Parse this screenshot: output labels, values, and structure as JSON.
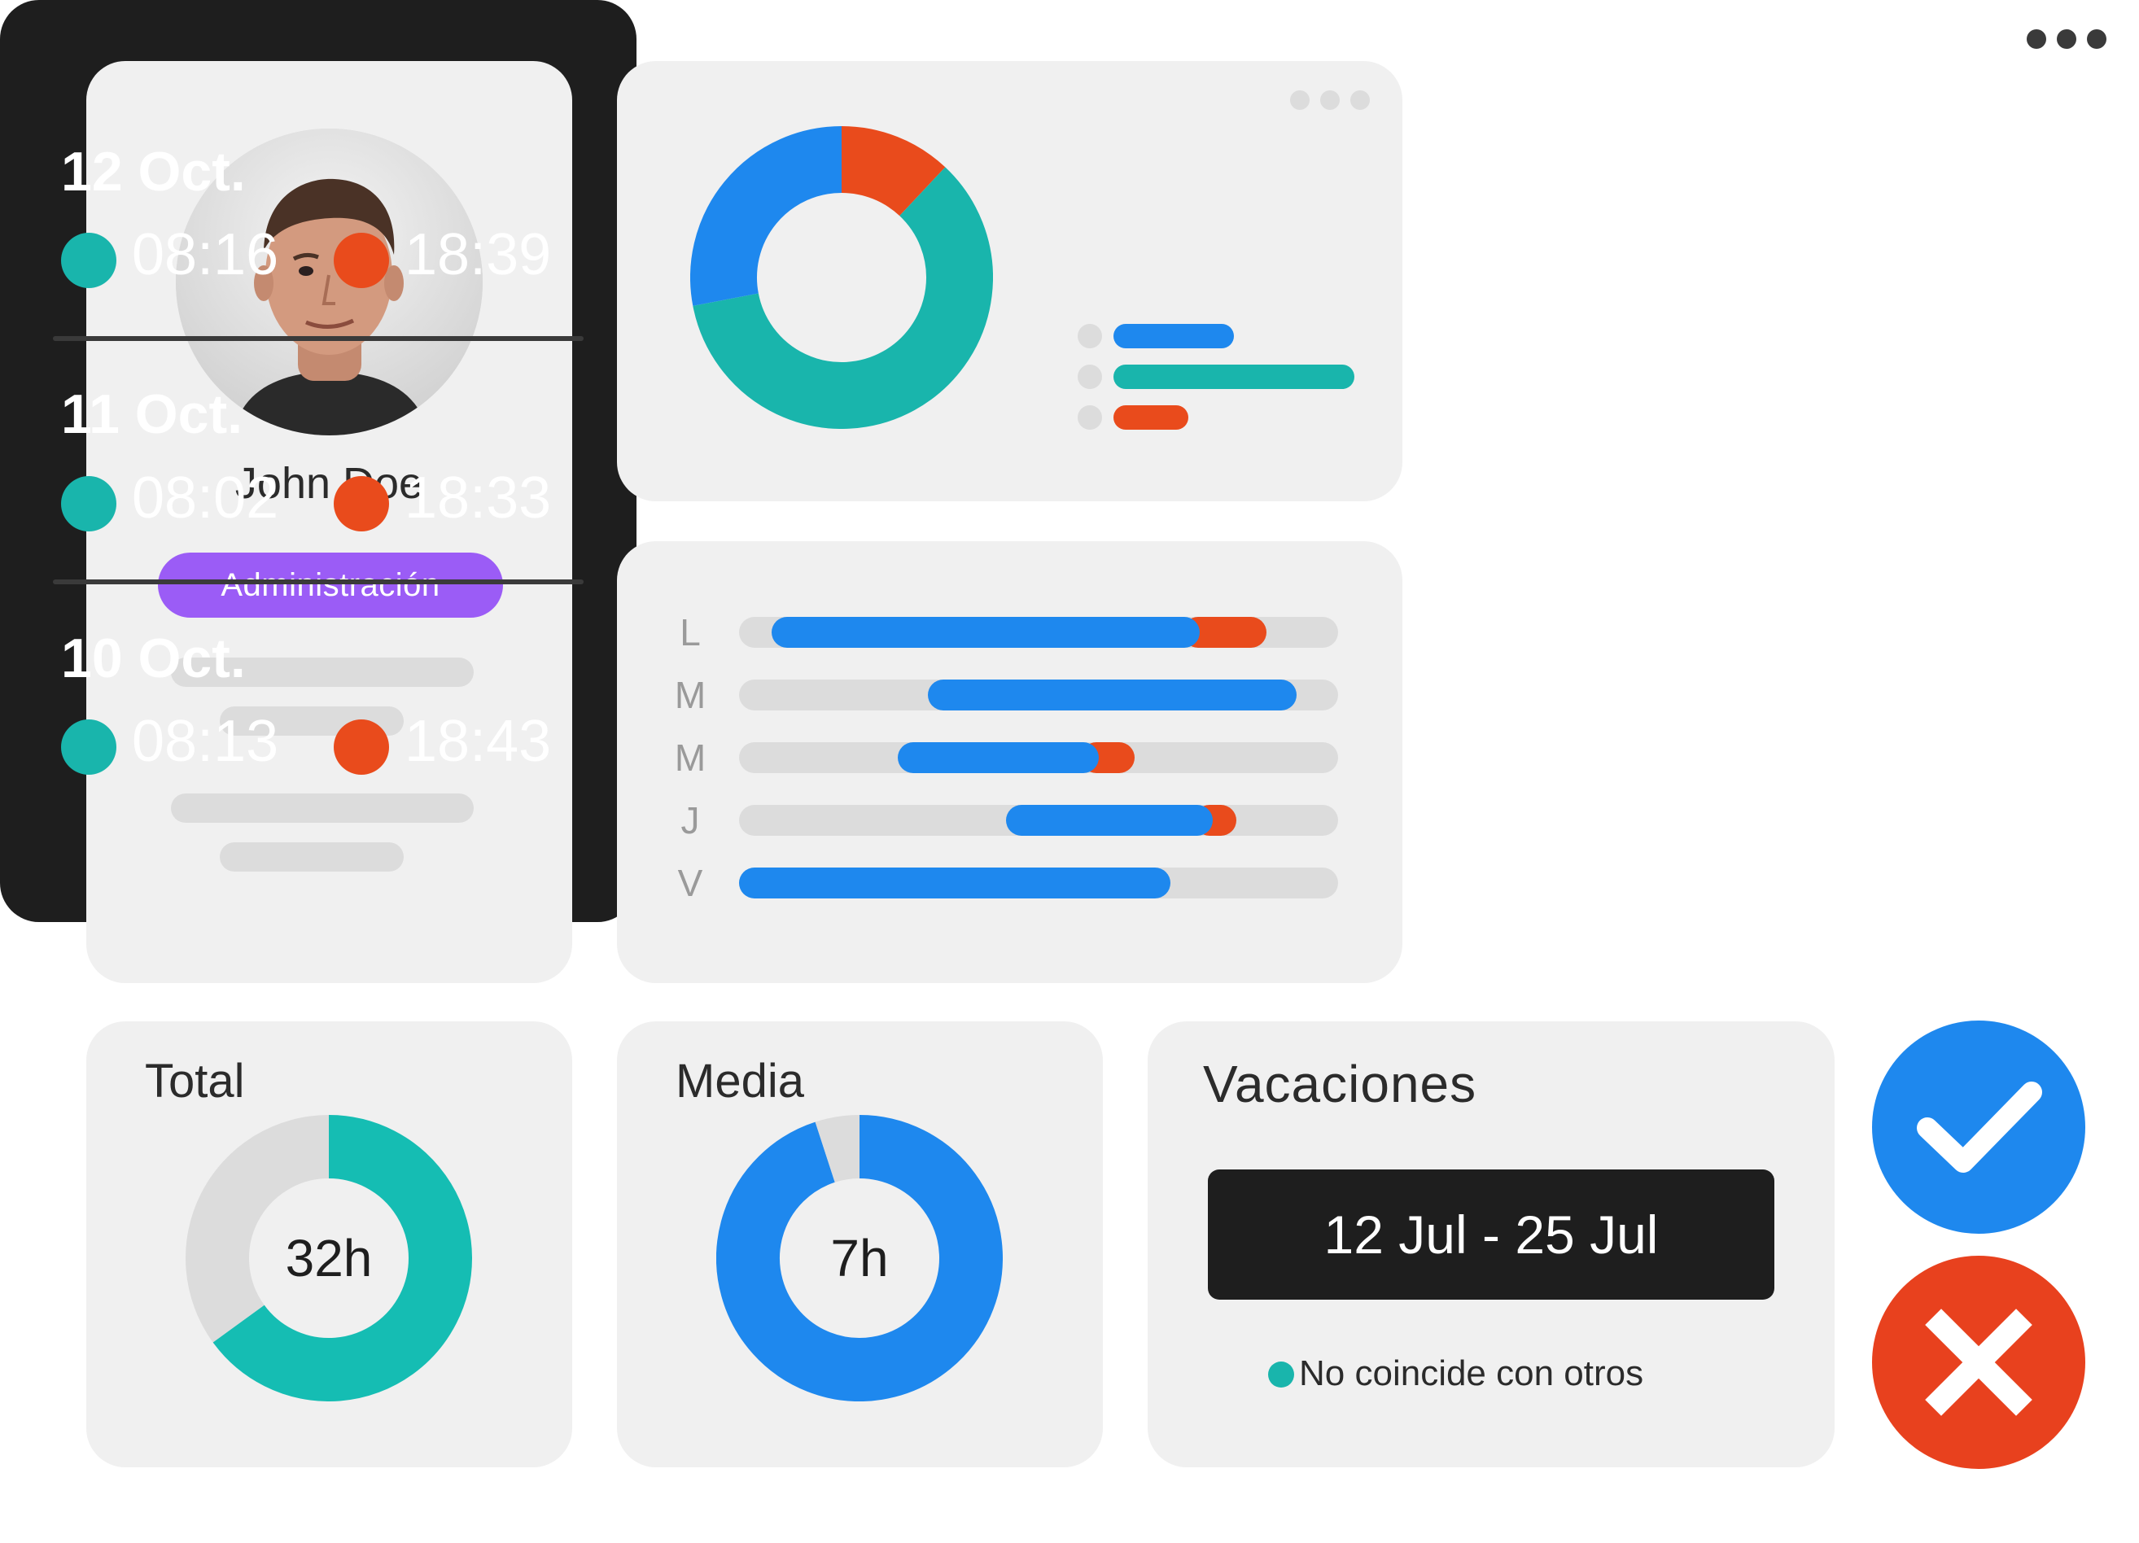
{
  "colors": {
    "blue": "#1e88ee",
    "teal": "#19b5ac",
    "orange": "#e94b1c",
    "purple": "#9b5cf6",
    "dark": "#1e1e1e",
    "card": "#f0f0f0",
    "track": "#dcdcdc"
  },
  "profile": {
    "name": "John Doe",
    "role": "Administración",
    "avatar_icon": "user-photo"
  },
  "summary": {
    "donut": [
      {
        "color": "#e94b1c",
        "fraction": 0.12
      },
      {
        "color": "#19b5ac",
        "fraction": 0.6
      },
      {
        "color": "#1e88ee",
        "fraction": 0.28
      }
    ],
    "legend": [
      {
        "color": "#1e88ee",
        "fraction": 0.5
      },
      {
        "color": "#19b5ac",
        "fraction": 1.0
      },
      {
        "color": "#e94b1c",
        "fraction": 0.31
      }
    ]
  },
  "week": {
    "days": [
      {
        "label": "L",
        "blue": [
          0.055,
          0.77
        ],
        "orange": [
          0.74,
          0.88
        ]
      },
      {
        "label": "M",
        "blue": [
          0.315,
          0.93
        ],
        "orange": null
      },
      {
        "label": "M",
        "blue": [
          0.265,
          0.6
        ],
        "orange": [
          0.57,
          0.66
        ]
      },
      {
        "label": "J",
        "blue": [
          0.445,
          0.79
        ],
        "orange": [
          0.76,
          0.83
        ]
      },
      {
        "label": "V",
        "blue": [
          0.0,
          0.72
        ],
        "orange": null
      }
    ]
  },
  "log": [
    {
      "date": "12 Oct.",
      "in": "08:16",
      "out": "18:39"
    },
    {
      "date": "11 Oct.",
      "in": "08:02",
      "out": "18:33"
    },
    {
      "date": "10 Oct.",
      "in": "08:13",
      "out": "18:43"
    }
  ],
  "total": {
    "title": "Total",
    "value": "32h",
    "fraction": 0.65,
    "color": "#15bdb3"
  },
  "media": {
    "title": "Media",
    "value": "7h",
    "fraction": 0.95,
    "color": "#1e88ee"
  },
  "vacation": {
    "title": "Vacaciones",
    "range": "12 Jul - 25 Jul",
    "status": "No coincide con otros"
  },
  "actions": {
    "approve_icon": "check-icon",
    "reject_icon": "close-icon"
  }
}
